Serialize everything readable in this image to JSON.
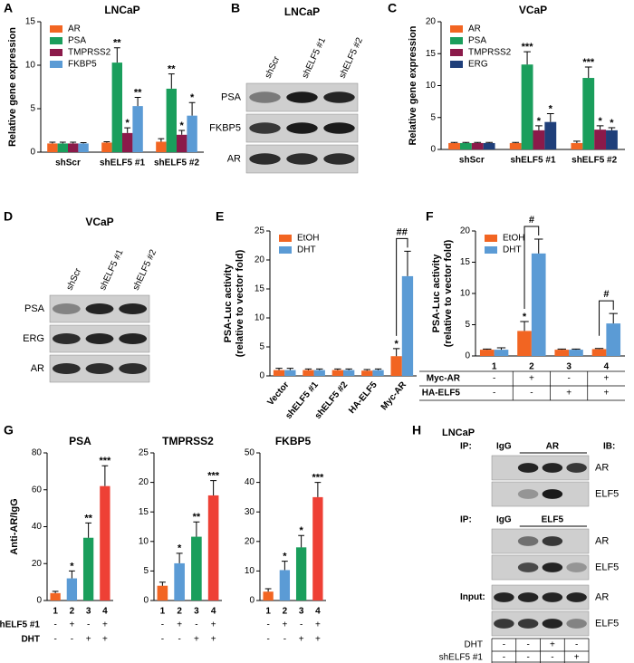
{
  "chart_data": [
    {
      "panel": "A",
      "type": "bar",
      "title": "LNCaP",
      "y_label": [
        "Relative gene expression"
      ],
      "categories": [
        "shScr",
        "shELF5 #1",
        "shELF5 #2"
      ],
      "series": [
        {
          "name": "AR",
          "color": "#f26522",
          "values": [
            1.0,
            1.1,
            1.2
          ],
          "errors": [
            0.15,
            0.1,
            0.35
          ],
          "annotations": [
            null,
            null,
            null
          ]
        },
        {
          "name": "PSA",
          "color": "#1a9e5c",
          "values": [
            1.0,
            10.3,
            7.3
          ],
          "errors": [
            0.15,
            1.7,
            1.7
          ],
          "annotations": [
            null,
            "**",
            "**"
          ]
        },
        {
          "name": "TMPRSS2",
          "color": "#8b1a4a",
          "values": [
            1.0,
            2.2,
            2.0
          ],
          "errors": [
            0.15,
            0.6,
            0.5
          ],
          "annotations": [
            null,
            "*",
            "*"
          ]
        },
        {
          "name": "FKBP5",
          "color": "#5b9bd5",
          "values": [
            1.0,
            5.3,
            4.2
          ],
          "errors": [
            0.1,
            1.0,
            1.5
          ],
          "annotations": [
            null,
            "**",
            "*"
          ]
        }
      ],
      "ylim": [
        0,
        15
      ],
      "yticks": [
        0,
        5,
        10,
        15
      ],
      "legend": "upper left"
    },
    {
      "panel": "C",
      "type": "bar",
      "title": "VCaP",
      "y_label": [
        "Relative gene expression"
      ],
      "categories": [
        "shScr",
        "shELF5 #1",
        "shELF5 #2"
      ],
      "series": [
        {
          "name": "AR",
          "color": "#f26522",
          "values": [
            1.0,
            1.0,
            1.0
          ],
          "errors": [
            0.1,
            0.1,
            0.3
          ],
          "annotations": [
            null,
            null,
            null
          ]
        },
        {
          "name": "PSA",
          "color": "#1a9e5c",
          "values": [
            1.0,
            13.3,
            11.2
          ],
          "errors": [
            0.1,
            2.0,
            1.7
          ],
          "annotations": [
            null,
            "***",
            "***"
          ]
        },
        {
          "name": "TMPRSS2",
          "color": "#8b1a4a",
          "values": [
            1.0,
            3.0,
            3.1
          ],
          "errors": [
            0.1,
            0.7,
            0.6
          ],
          "annotations": [
            null,
            "*",
            "*"
          ]
        },
        {
          "name": "ERG",
          "color": "#1f3f7a",
          "values": [
            1.0,
            4.3,
            3.0
          ],
          "errors": [
            0.1,
            1.3,
            0.4
          ],
          "annotations": [
            null,
            "*",
            "*"
          ]
        }
      ],
      "ylim": [
        0,
        20
      ],
      "yticks": [
        0,
        5,
        10,
        15,
        20
      ],
      "legend": "upper left"
    },
    {
      "panel": "E",
      "type": "bar",
      "y_label": [
        "PSA-Luc activity",
        "(relative to vector fold)"
      ],
      "categories": [
        "Vector",
        "shELF5 #1",
        "shELF5 #2",
        "HA-ELF5",
        "Myc-AR"
      ],
      "series": [
        {
          "name": "EtOH",
          "color": "#f26522",
          "values": [
            1.0,
            1.0,
            1.0,
            0.9,
            3.4
          ],
          "errors": [
            0.3,
            0.2,
            0.2,
            0.2,
            1.3
          ],
          "annotations": [
            null,
            null,
            null,
            null,
            "*"
          ]
        },
        {
          "name": "DHT",
          "color": "#5b9bd5",
          "values": [
            1.0,
            1.0,
            1.0,
            1.0,
            17.2
          ],
          "errors": [
            0.3,
            0.2,
            0.2,
            0.2,
            4.3
          ],
          "annotations": [
            null,
            null,
            null,
            null,
            null
          ]
        }
      ],
      "bracket_labels": [
        null,
        null,
        null,
        null,
        "##"
      ],
      "ylim": [
        0,
        25
      ],
      "yticks": [
        0,
        5,
        10,
        15,
        20,
        25
      ],
      "legend": "upper left"
    },
    {
      "panel": "F",
      "type": "bar",
      "y_label": [
        "PSA-Luc activity",
        "(relative to vector fold)"
      ],
      "categories": [
        "1",
        "2",
        "3",
        "4"
      ],
      "series": [
        {
          "name": "EtOH",
          "color": "#f26522",
          "values": [
            1.0,
            4.0,
            1.0,
            1.1
          ],
          "errors": [
            0.1,
            1.5,
            0.1,
            0.1
          ],
          "annotations": [
            null,
            "*",
            null,
            null
          ]
        },
        {
          "name": "DHT",
          "color": "#5b9bd5",
          "values": [
            1.0,
            16.4,
            1.0,
            5.2
          ],
          "errors": [
            0.3,
            2.3,
            0.1,
            1.6
          ],
          "annotations": [
            null,
            null,
            null,
            null
          ]
        }
      ],
      "bracket_labels": [
        null,
        "#",
        null,
        "#"
      ],
      "conditions": [
        {
          "label": "Myc-AR",
          "values": [
            "-",
            "+",
            "-",
            "+"
          ]
        },
        {
          "label": "HA-ELF5",
          "values": [
            "-",
            "-",
            "+",
            "+"
          ]
        }
      ],
      "ylim": [
        0,
        20
      ],
      "yticks": [
        0,
        5,
        10,
        15,
        20
      ],
      "legend": "upper left"
    },
    {
      "panel": "G",
      "type": "bar",
      "title": "PSA",
      "y_label": [
        "Anti-AR/IgG"
      ],
      "categories": [
        "1",
        "2",
        "3",
        "4"
      ],
      "colors": [
        "#f26522",
        "#5b9bd5",
        "#1a9e5c",
        "#ee4035"
      ],
      "values": [
        4,
        12,
        34,
        62
      ],
      "errors": [
        1,
        4,
        8,
        11
      ],
      "annotations": [
        null,
        "*",
        "**",
        "***"
      ],
      "conditions": [
        {
          "label": "shELF5 #1",
          "values": [
            "-",
            "+",
            "-",
            "+"
          ]
        },
        {
          "label": "DHT",
          "values": [
            "-",
            "-",
            "+",
            "+"
          ]
        }
      ],
      "ylim": [
        0,
        80
      ],
      "yticks": [
        0,
        20,
        40,
        60,
        80
      ]
    },
    {
      "type": "bar",
      "title": "TMPRSS2",
      "categories": [
        "1",
        "2",
        "3",
        "4"
      ],
      "colors": [
        "#f26522",
        "#5b9bd5",
        "#1a9e5c",
        "#ee4035"
      ],
      "values": [
        2.5,
        6.3,
        10.8,
        17.8
      ],
      "errors": [
        0.6,
        1.7,
        2.5,
        2.5
      ],
      "annotations": [
        null,
        "*",
        "**",
        "***"
      ],
      "conditions": [
        {
          "values": [
            "-",
            "+",
            "-",
            "+"
          ]
        },
        {
          "values": [
            "-",
            "-",
            "+",
            "+"
          ]
        }
      ],
      "ylim": [
        0,
        25
      ],
      "yticks": [
        0,
        5,
        10,
        15,
        20,
        25
      ]
    },
    {
      "type": "bar",
      "title": "FKBP5",
      "categories": [
        "1",
        "2",
        "3",
        "4"
      ],
      "colors": [
        "#f26522",
        "#5b9bd5",
        "#1a9e5c",
        "#ee4035"
      ],
      "values": [
        3,
        10.3,
        18,
        35
      ],
      "errors": [
        1,
        3,
        4,
        5
      ],
      "annotations": [
        null,
        "*",
        "*",
        "***"
      ],
      "conditions": [
        {
          "values": [
            "-",
            "+",
            "-",
            "+"
          ]
        },
        {
          "values": [
            "-",
            "-",
            "+",
            "+"
          ]
        }
      ],
      "ylim": [
        0,
        50
      ],
      "yticks": [
        0,
        10,
        20,
        30,
        40,
        50
      ]
    }
  ],
  "blots": [
    {
      "panel": "B",
      "title": "LNCaP",
      "lanes": [
        "shScr",
        "shELF5 #1",
        "shELF5 #2"
      ],
      "rows": [
        "PSA",
        "FKBP5",
        "AR"
      ]
    },
    {
      "panel": "D",
      "title": "VCaP",
      "lanes": [
        "shScr",
        "shELF5 #1",
        "shELF5 #2"
      ],
      "rows": [
        "PSA",
        "ERG",
        "AR"
      ]
    },
    {
      "panel": "H",
      "title": "LNCaP",
      "blocks": [
        {
          "label": "IP:",
          "lanes": [
            "IgG",
            "AR"
          ],
          "ib": "IB:",
          "rows": [
            "AR",
            "ELF5"
          ]
        },
        {
          "label": "IP:",
          "lanes": [
            "IgG",
            "ELF5"
          ],
          "rows": [
            "AR",
            "ELF5"
          ]
        },
        {
          "label": "Input:",
          "rows": [
            "AR",
            "ELF5"
          ]
        }
      ],
      "conditions": [
        {
          "label": "DHT",
          "values": [
            "-",
            "-",
            "+",
            "-"
          ]
        },
        {
          "label": "shELF5 #1",
          "values": [
            "-",
            "-",
            "-",
            "+"
          ]
        }
      ]
    }
  ]
}
